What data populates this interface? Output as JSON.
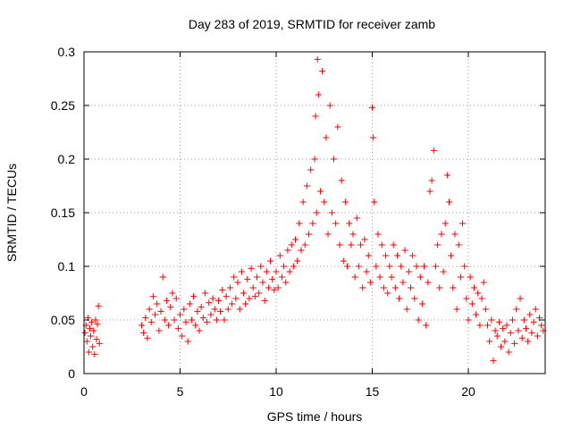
{
  "chart_data": {
    "type": "scatter",
    "title": "Day 283 of 2019, SRMTID for receiver zamb",
    "xlabel": "GPS time / hours",
    "ylabel": "SRMTID / TECUs",
    "xlim": [
      0,
      24
    ],
    "ylim": [
      0,
      0.3
    ],
    "xticks": [
      0,
      5,
      10,
      15,
      20
    ],
    "yticks": [
      0,
      0.05,
      0.1,
      0.15,
      0.2,
      0.25,
      0.3
    ],
    "marker": "+",
    "color": "#ff0000",
    "grid": true,
    "series": [
      {
        "name": "SRMTID",
        "points": [
          [
            0.05,
            0.038
          ],
          [
            0.1,
            0.045
          ],
          [
            0.15,
            0.03
          ],
          [
            0.2,
            0.052
          ],
          [
            0.25,
            0.02
          ],
          [
            0.3,
            0.042
          ],
          [
            0.35,
            0.035
          ],
          [
            0.4,
            0.048
          ],
          [
            0.45,
            0.025
          ],
          [
            0.5,
            0.04
          ],
          [
            0.55,
            0.018
          ],
          [
            0.6,
            0.05
          ],
          [
            0.65,
            0.032
          ],
          [
            0.7,
            0.046
          ],
          [
            0.75,
            0.063
          ],
          [
            0.8,
            0.028
          ],
          [
            3.0,
            0.045
          ],
          [
            3.1,
            0.038
          ],
          [
            3.2,
            0.052
          ],
          [
            3.3,
            0.033
          ],
          [
            3.4,
            0.06
          ],
          [
            3.5,
            0.048
          ],
          [
            3.6,
            0.072
          ],
          [
            3.7,
            0.055
          ],
          [
            3.8,
            0.065
          ],
          [
            3.9,
            0.04
          ],
          [
            4.0,
            0.058
          ],
          [
            4.1,
            0.09
          ],
          [
            4.2,
            0.05
          ],
          [
            4.3,
            0.068
          ],
          [
            4.4,
            0.045
          ],
          [
            4.5,
            0.062
          ],
          [
            4.6,
            0.075
          ],
          [
            4.7,
            0.05
          ],
          [
            4.8,
            0.07
          ],
          [
            4.9,
            0.042
          ],
          [
            5.0,
            0.055
          ],
          [
            5.1,
            0.035
          ],
          [
            5.2,
            0.06
          ],
          [
            5.3,
            0.048
          ],
          [
            5.4,
            0.03
          ],
          [
            5.5,
            0.065
          ],
          [
            5.6,
            0.05
          ],
          [
            5.7,
            0.072
          ],
          [
            5.8,
            0.045
          ],
          [
            5.9,
            0.058
          ],
          [
            6.0,
            0.04
          ],
          [
            6.1,
            0.062
          ],
          [
            6.2,
            0.052
          ],
          [
            6.3,
            0.075
          ],
          [
            6.4,
            0.048
          ],
          [
            6.5,
            0.066
          ],
          [
            6.6,
            0.055
          ],
          [
            6.7,
            0.07
          ],
          [
            6.8,
            0.06
          ],
          [
            6.9,
            0.05
          ],
          [
            7.0,
            0.068
          ],
          [
            7.1,
            0.058
          ],
          [
            7.2,
            0.078
          ],
          [
            7.3,
            0.05
          ],
          [
            7.4,
            0.072
          ],
          [
            7.5,
            0.06
          ],
          [
            7.6,
            0.08
          ],
          [
            7.7,
            0.065
          ],
          [
            7.8,
            0.09
          ],
          [
            7.9,
            0.07
          ],
          [
            8.0,
            0.085
          ],
          [
            8.1,
            0.06
          ],
          [
            8.2,
            0.095
          ],
          [
            8.3,
            0.075
          ],
          [
            8.4,
            0.065
          ],
          [
            8.5,
            0.088
          ],
          [
            8.6,
            0.07
          ],
          [
            8.7,
            0.098
          ],
          [
            8.8,
            0.08
          ],
          [
            8.9,
            0.072
          ],
          [
            9.0,
            0.09
          ],
          [
            9.1,
            0.075
          ],
          [
            9.2,
            0.1
          ],
          [
            9.3,
            0.085
          ],
          [
            9.4,
            0.068
          ],
          [
            9.5,
            0.095
          ],
          [
            9.6,
            0.08
          ],
          [
            9.7,
            0.105
          ],
          [
            9.8,
            0.088
          ],
          [
            9.9,
            0.078
          ],
          [
            10.0,
            0.095
          ],
          [
            10.1,
            0.08
          ],
          [
            10.2,
            0.11
          ],
          [
            10.3,
            0.09
          ],
          [
            10.4,
            0.1
          ],
          [
            10.5,
            0.085
          ],
          [
            10.6,
            0.115
          ],
          [
            10.7,
            0.095
          ],
          [
            10.8,
            0.12
          ],
          [
            10.9,
            0.1
          ],
          [
            11.0,
            0.125
          ],
          [
            11.1,
            0.105
          ],
          [
            11.2,
            0.14
          ],
          [
            11.3,
            0.115
          ],
          [
            11.4,
            0.16
          ],
          [
            11.5,
            0.12
          ],
          [
            11.6,
            0.175
          ],
          [
            11.7,
            0.13
          ],
          [
            11.8,
            0.19
          ],
          [
            11.9,
            0.14
          ],
          [
            12.0,
            0.2
          ],
          [
            12.05,
            0.24
          ],
          [
            12.1,
            0.15
          ],
          [
            12.15,
            0.293
          ],
          [
            12.2,
            0.26
          ],
          [
            12.3,
            0.17
          ],
          [
            12.4,
            0.282
          ],
          [
            12.5,
            0.16
          ],
          [
            12.6,
            0.22
          ],
          [
            12.7,
            0.13
          ],
          [
            12.8,
            0.25
          ],
          [
            12.9,
            0.15
          ],
          [
            13.0,
            0.2
          ],
          [
            13.1,
            0.14
          ],
          [
            13.2,
            0.23
          ],
          [
            13.3,
            0.12
          ],
          [
            13.4,
            0.18
          ],
          [
            13.5,
            0.105
          ],
          [
            13.6,
            0.16
          ],
          [
            13.7,
            0.1
          ],
          [
            13.8,
            0.14
          ],
          [
            13.9,
            0.12
          ],
          [
            14.0,
            0.13
          ],
          [
            14.1,
            0.09
          ],
          [
            14.2,
            0.145
          ],
          [
            14.3,
            0.1
          ],
          [
            14.4,
            0.12
          ],
          [
            14.5,
            0.08
          ],
          [
            14.6,
            0.125
          ],
          [
            14.7,
            0.095
          ],
          [
            14.8,
            0.11
          ],
          [
            14.9,
            0.085
          ],
          [
            15.0,
            0.248
          ],
          [
            15.05,
            0.22
          ],
          [
            15.1,
            0.16
          ],
          [
            15.2,
            0.1
          ],
          [
            15.3,
            0.13
          ],
          [
            15.4,
            0.09
          ],
          [
            15.5,
            0.12
          ],
          [
            15.6,
            0.08
          ],
          [
            15.7,
            0.11
          ],
          [
            15.8,
            0.075
          ],
          [
            15.9,
            0.1
          ],
          [
            16.0,
            0.09
          ],
          [
            16.1,
            0.12
          ],
          [
            16.2,
            0.08
          ],
          [
            16.3,
            0.11
          ],
          [
            16.4,
            0.07
          ],
          [
            16.5,
            0.1
          ],
          [
            16.6,
            0.085
          ],
          [
            16.7,
            0.115
          ],
          [
            16.8,
            0.06
          ],
          [
            16.9,
            0.095
          ],
          [
            17.0,
            0.08
          ],
          [
            17.1,
            0.11
          ],
          [
            17.2,
            0.07
          ],
          [
            17.3,
            0.1
          ],
          [
            17.4,
            0.05
          ],
          [
            17.5,
            0.09
          ],
          [
            17.6,
            0.065
          ],
          [
            17.7,
            0.1
          ],
          [
            17.8,
            0.045
          ],
          [
            17.9,
            0.085
          ],
          [
            18.0,
            0.17
          ],
          [
            18.1,
            0.18
          ],
          [
            18.2,
            0.208
          ],
          [
            18.3,
            0.1
          ],
          [
            18.4,
            0.12
          ],
          [
            18.5,
            0.08
          ],
          [
            18.6,
            0.13
          ],
          [
            18.7,
            0.095
          ],
          [
            18.8,
            0.14
          ],
          [
            18.9,
            0.185
          ],
          [
            19.0,
            0.16
          ],
          [
            19.1,
            0.11
          ],
          [
            19.2,
            0.08
          ],
          [
            19.3,
            0.13
          ],
          [
            19.4,
            0.06
          ],
          [
            19.5,
            0.12
          ],
          [
            19.6,
            0.09
          ],
          [
            19.7,
            0.14
          ],
          [
            19.8,
            0.1
          ],
          [
            19.9,
            0.07
          ],
          [
            20.0,
            0.05
          ],
          [
            20.1,
            0.09
          ],
          [
            20.2,
            0.065
          ],
          [
            20.3,
            0.08
          ],
          [
            20.4,
            0.055
          ],
          [
            20.5,
            0.075
          ],
          [
            20.6,
            0.045
          ],
          [
            20.7,
            0.07
          ],
          [
            20.8,
            0.085
          ],
          [
            20.9,
            0.06
          ],
          [
            21.0,
            0.045
          ],
          [
            21.1,
            0.03
          ],
          [
            21.2,
            0.05
          ],
          [
            21.3,
            0.012
          ],
          [
            21.4,
            0.04
          ],
          [
            21.5,
            0.035
          ],
          [
            21.6,
            0.048
          ],
          [
            21.7,
            0.025
          ],
          [
            21.8,
            0.042
          ],
          [
            21.9,
            0.03
          ],
          [
            22.0,
            0.045
          ],
          [
            22.1,
            0.02
          ],
          [
            22.2,
            0.038
          ],
          [
            22.3,
            0.05
          ],
          [
            22.4,
            0.028
          ],
          [
            22.5,
            0.06
          ],
          [
            22.6,
            0.04
          ],
          [
            22.7,
            0.07
          ],
          [
            22.8,
            0.033
          ],
          [
            22.9,
            0.05
          ],
          [
            23.0,
            0.042
          ],
          [
            23.1,
            0.03
          ],
          [
            23.2,
            0.055
          ],
          [
            23.3,
            0.038
          ],
          [
            23.4,
            0.048
          ],
          [
            23.5,
            0.06
          ],
          [
            23.6,
            0.035
          ],
          [
            23.7,
            0.052
          ],
          [
            23.8,
            0.045
          ],
          [
            23.9,
            0.04
          ]
        ]
      }
    ]
  }
}
